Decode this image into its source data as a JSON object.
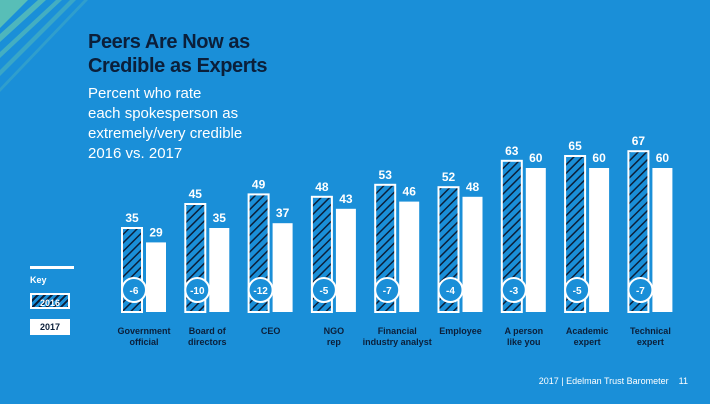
{
  "title_lines": [
    "Peers Are Now as",
    "Credible as Experts"
  ],
  "subtitle_lines": [
    "Percent who rate",
    "each spokesperson as",
    "extremely/very credible",
    "2016 vs. 2017"
  ],
  "key": {
    "title": "Key",
    "label_2016": "2016",
    "label_2017": "2017"
  },
  "footer": {
    "source": "2017 | Edelman Trust Barometer",
    "page": "11"
  },
  "colors": {
    "background": "#1a8fd8",
    "dark": "#0b1f3a",
    "white": "#ffffff",
    "deco": "#5fc3b4"
  },
  "chart_data": {
    "type": "bar",
    "title": "Peers Are Now as Credible as Experts",
    "categories": [
      [
        "Government",
        "official"
      ],
      [
        "Board of",
        "directors"
      ],
      [
        "CEO"
      ],
      [
        "NGO",
        "rep"
      ],
      [
        "Financial",
        "industry analyst"
      ],
      [
        "Employee"
      ],
      [
        "A person",
        "like you"
      ],
      [
        "Academic",
        "expert"
      ],
      [
        "Technical",
        "expert"
      ]
    ],
    "series": [
      {
        "name": "2016",
        "values": [
          35,
          45,
          49,
          48,
          53,
          52,
          63,
          65,
          67
        ]
      },
      {
        "name": "2017",
        "values": [
          29,
          35,
          37,
          43,
          46,
          48,
          60,
          60,
          60
        ]
      }
    ],
    "change": [
      "-6",
      "-10",
      "-12",
      "-5",
      "-7",
      "-4",
      "-3",
      "-5",
      "-7"
    ],
    "ylim": [
      0,
      100
    ],
    "legend": "bottom-left"
  }
}
